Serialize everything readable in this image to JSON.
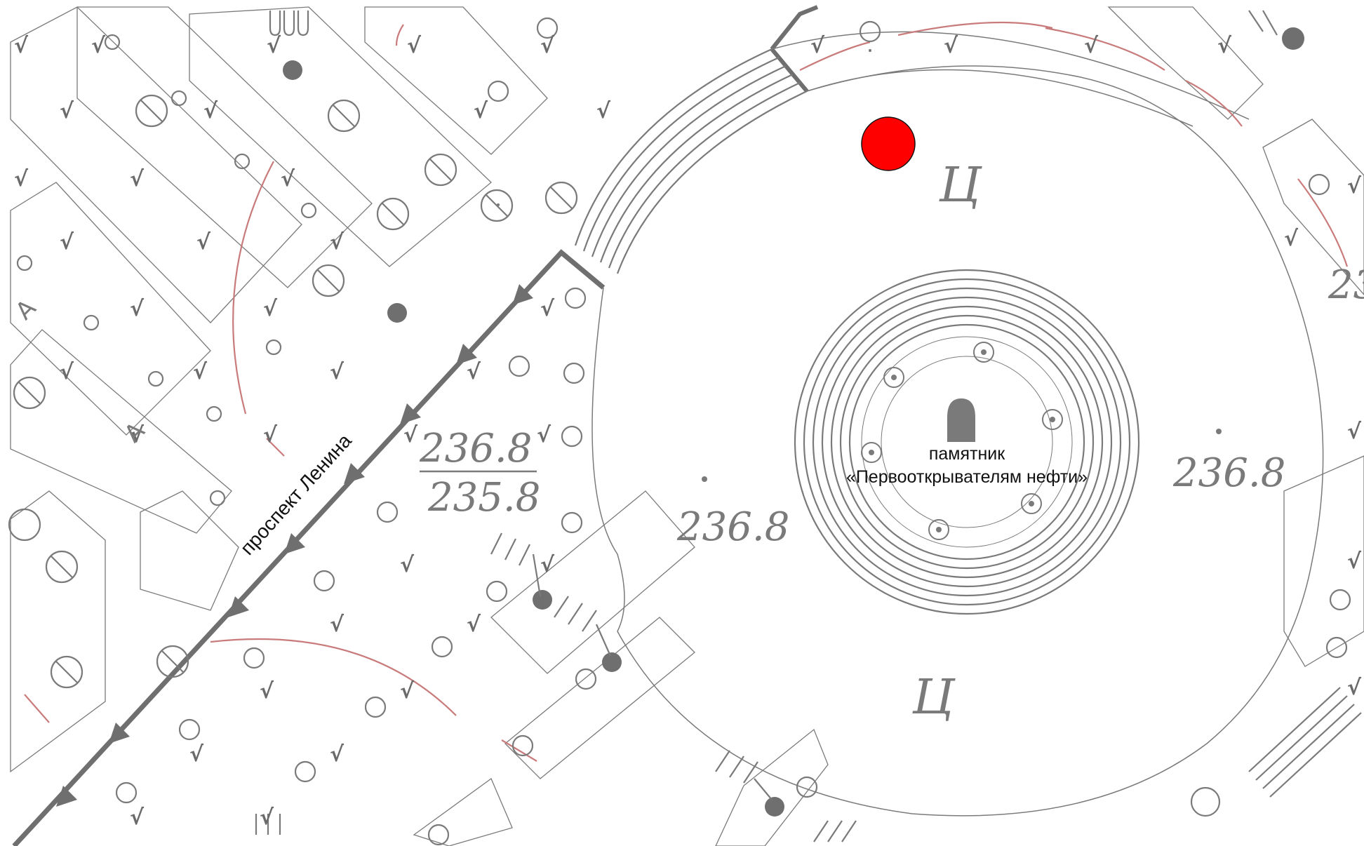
{
  "map": {
    "street_label": "проспект Ленина",
    "monument_label_line1": "памятник",
    "monument_label_line2": "«Первооткрывателям нефти»",
    "surface_code_top": "Ц",
    "surface_code_bottom": "Ц",
    "elevations": {
      "left_top": "236.8",
      "left_bottom": "235.8",
      "center_left": "236.8",
      "center_right": "236.8",
      "edge_partial": "23"
    },
    "marker": {
      "color": "#ff0000",
      "meaning": "location-marker"
    },
    "colors": {
      "lines": "#7a7a7a",
      "red_lines": "#c97b7b",
      "background": "#ffffff"
    }
  }
}
